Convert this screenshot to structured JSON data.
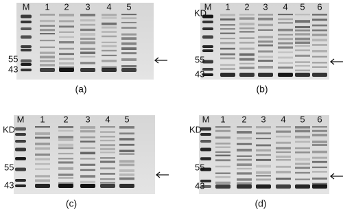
{
  "panels": [
    {
      "caption": "(a)",
      "marker": "M",
      "lanes": [
        "1",
        "2",
        "3",
        "4",
        "5"
      ],
      "size_labels": [
        "55",
        "43"
      ]
    },
    {
      "caption": "(b)",
      "marker": "M",
      "unit_label": "KD",
      "lanes": [
        "1",
        "2",
        "3",
        "4",
        "5",
        "6"
      ],
      "size_labels": [
        "55",
        "43"
      ]
    },
    {
      "caption": "(c)",
      "marker": "M",
      "unit_label": "KD",
      "lanes": [
        "1",
        "2",
        "3",
        "4",
        "5"
      ],
      "size_labels": [
        "55",
        "43"
      ]
    },
    {
      "caption": "(d)",
      "marker": "M",
      "unit_label": "KD",
      "lanes": [
        "1",
        "2",
        "3",
        "4",
        "5",
        "6"
      ],
      "size_labels": [
        "55",
        "43"
      ]
    }
  ]
}
